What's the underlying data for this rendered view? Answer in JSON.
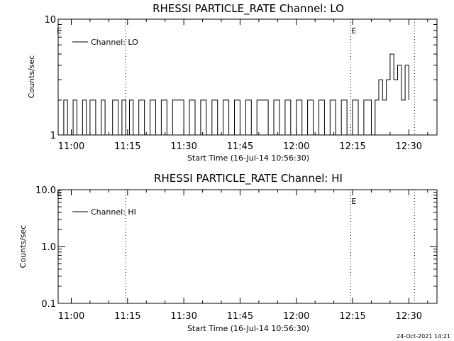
{
  "timestamp": "24-Oct-2021 14:21",
  "chart_data": [
    {
      "type": "line",
      "title": "RHESSI PARTICLE_RATE Channel: LO",
      "xlabel": "Start Time (16-Jul-14 10:56:30)",
      "ylabel": "Counts/sec",
      "y_scale": "log",
      "ylim": [
        1,
        10
      ],
      "xlim": [
        "10:56:30",
        "12:37:30"
      ],
      "x_tick_labels": [
        "11:00",
        "11:15",
        "11:30",
        "11:45",
        "12:00",
        "12:15",
        "12:30"
      ],
      "y_tick_labels": [
        "1",
        "10"
      ],
      "legend": {
        "placement": "top-left",
        "entries": [
          "Channel: LO"
        ]
      },
      "vertical_markers": [
        {
          "time": "11:14:30",
          "label": ""
        },
        {
          "time": "12:14:30",
          "label": "E"
        },
        {
          "time": "12:31:30",
          "label": ""
        }
      ],
      "edge_label_left": "E",
      "series": [
        {
          "name": "Channel: LO",
          "x": [
            "10:56:30",
            "10:58:00",
            "10:59:00",
            "11:00:30",
            "11:01:30",
            "11:03:00",
            "11:04:00",
            "11:05:00",
            "11:06:30",
            "11:08:00",
            "11:09:00",
            "11:10:00",
            "11:11:00",
            "11:12:30",
            "11:13:30",
            "11:14:30",
            "11:15:30",
            "11:16:30",
            "11:18:00",
            "11:19:30",
            "11:21:00",
            "11:22:30",
            "11:24:00",
            "11:25:30",
            "11:27:00",
            "11:28:30",
            "11:30:00",
            "11:31:30",
            "11:33:00",
            "11:34:30",
            "11:36:00",
            "11:37:30",
            "11:39:00",
            "11:40:30",
            "11:42:00",
            "11:43:30",
            "11:45:00",
            "11:46:30",
            "11:48:00",
            "11:49:30",
            "11:51:00",
            "11:52:30",
            "11:54:00",
            "11:55:30",
            "11:57:00",
            "11:58:30",
            "12:00:00",
            "12:01:30",
            "12:03:00",
            "12:04:30",
            "12:06:00",
            "12:07:30",
            "12:09:00",
            "12:10:30",
            "12:12:00",
            "12:13:30",
            "12:15:00",
            "12:16:30",
            "12:18:00",
            "12:19:00",
            "12:20:00",
            "12:21:00",
            "12:22:00",
            "12:23:00",
            "12:24:00",
            "12:25:00",
            "12:26:00",
            "12:27:00",
            "12:28:00",
            "12:29:00",
            "12:30:00"
          ],
          "y": [
            1,
            2,
            1,
            2,
            1,
            2,
            1,
            2,
            1,
            2,
            1,
            1,
            2,
            1,
            2,
            1,
            2,
            1,
            2,
            1,
            2,
            1,
            2,
            1,
            2,
            2,
            1,
            2,
            1,
            2,
            1,
            2,
            1,
            2,
            1,
            2,
            1,
            2,
            1,
            2,
            2,
            1,
            2,
            1,
            2,
            1,
            2,
            1,
            2,
            1,
            2,
            1,
            2,
            1,
            2,
            1,
            2,
            1,
            2,
            2,
            1,
            2,
            3,
            2,
            3,
            5,
            3,
            4,
            2,
            4,
            2
          ]
        }
      ]
    },
    {
      "type": "line",
      "title": "RHESSI PARTICLE_RATE Channel: HI",
      "xlabel": "Start Time (16-Jul-14 10:56:30)",
      "ylabel": "Counts/sec",
      "y_scale": "log",
      "ylim": [
        0.1,
        10
      ],
      "xlim": [
        "10:56:30",
        "12:37:30"
      ],
      "x_tick_labels": [
        "11:00",
        "11:15",
        "11:30",
        "11:45",
        "12:00",
        "12:15",
        "12:30"
      ],
      "y_tick_labels": [
        "0.1",
        "1.0",
        "10.0"
      ],
      "legend": {
        "placement": "top-left",
        "entries": [
          "Channel: HI"
        ]
      },
      "vertical_markers": [
        {
          "time": "11:14:30",
          "label": ""
        },
        {
          "time": "12:14:30",
          "label": "E"
        },
        {
          "time": "12:31:30",
          "label": ""
        }
      ],
      "edge_label_left": "E",
      "series": [
        {
          "name": "Channel: HI",
          "x": [],
          "y": []
        }
      ]
    }
  ]
}
